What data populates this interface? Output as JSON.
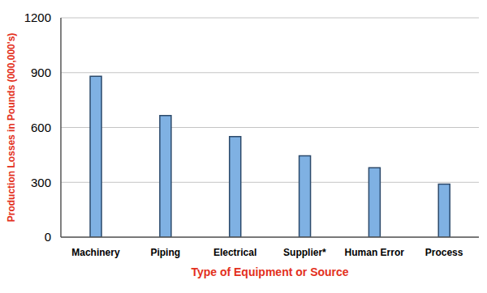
{
  "chart_data": {
    "type": "bar",
    "x_label": "Type of Equipment or Source",
    "y_label": "Production Losses in Pounds (000,000's)",
    "categories": [
      "Machinery",
      "Piping",
      "Electrical",
      "Supplier*",
      "Human Error",
      "Process"
    ],
    "values": [
      880,
      665,
      550,
      445,
      380,
      290
    ],
    "color": "#7fb1e3",
    "ylim": [
      0,
      1200
    ],
    "yticks": [
      0,
      300,
      600,
      900,
      1200
    ],
    "grid": true
  }
}
